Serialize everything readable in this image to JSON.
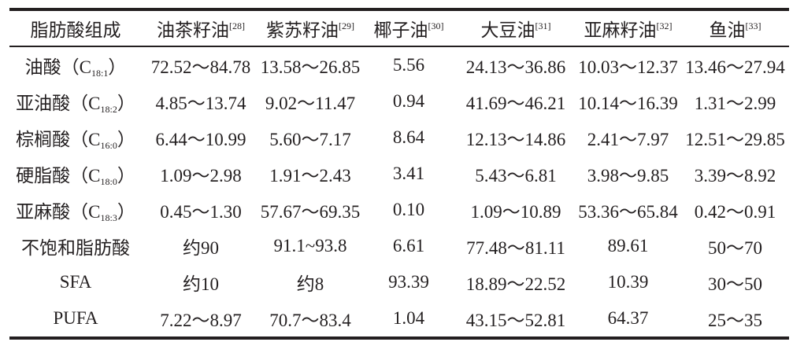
{
  "table": {
    "header": {
      "first": "脂肪酸组成",
      "oils": [
        {
          "name": "油茶籽油",
          "ref": "[28]"
        },
        {
          "name": "紫苏籽油",
          "ref": "[29]"
        },
        {
          "name": "椰子油",
          "ref": "[30]"
        },
        {
          "name": "大豆油",
          "ref": "[31]"
        },
        {
          "name": "亚麻籽油",
          "ref": "[32]"
        },
        {
          "name": "鱼油",
          "ref": "[33]"
        }
      ]
    },
    "rows": [
      {
        "label": {
          "text": "油酸（C",
          "sub": "18:1",
          "end": "）"
        },
        "cells": [
          "72.52～84.78",
          "13.58～26.85",
          "5.56",
          "24.13～36.86",
          "10.03～12.37",
          "13.46～27.94"
        ]
      },
      {
        "label": {
          "text": "亚油酸（C",
          "sub": "18:2",
          "end": "）"
        },
        "cells": [
          "4.85～13.74",
          "9.02～11.47",
          "0.94",
          "41.69～46.21",
          "10.14～16.39",
          "1.31～2.99"
        ]
      },
      {
        "label": {
          "text": "棕榈酸（C",
          "sub": "16:0",
          "end": "）"
        },
        "cells": [
          "6.44～10.99",
          "5.60～7.17",
          "8.64",
          "12.13～14.86",
          "2.41～7.97",
          "12.51～29.85"
        ]
      },
      {
        "label": {
          "text": "硬脂酸（C",
          "sub": "18:0",
          "end": "）"
        },
        "cells": [
          "1.09～2.98",
          "1.91～2.43",
          "3.41",
          "5.43～6.81",
          "3.98～9.85",
          "3.39～8.92"
        ]
      },
      {
        "label": {
          "text": "亚麻酸（C",
          "sub": "18:3",
          "end": "）"
        },
        "cells": [
          "0.45～1.30",
          "57.67～69.35",
          "0.10",
          "1.09～10.89",
          "53.36～65.84",
          "0.42～0.91"
        ]
      },
      {
        "label": {
          "text": "不饱和脂肪酸"
        },
        "cells": [
          "约90",
          "91.1~93.8",
          "6.61",
          "77.48～81.11",
          "89.61",
          "50～70"
        ]
      },
      {
        "label": {
          "text": "SFA"
        },
        "cells": [
          "约10",
          "约8",
          "93.39",
          "18.89～22.52",
          "10.39",
          "30～50"
        ]
      },
      {
        "label": {
          "text": "PUFA"
        },
        "cells": [
          "7.22～8.97",
          "70.7～83.4",
          "1.04",
          "43.15～52.81",
          "64.37",
          "25～35"
        ]
      }
    ]
  }
}
